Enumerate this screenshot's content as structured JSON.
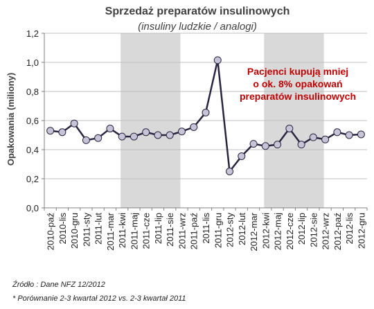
{
  "chart_data": {
    "type": "line",
    "title": "Sprzedaż preparatów insulinowych",
    "subtitle": "(insuliny ludzkie / analogi)",
    "ylabel": "Opakowania (miliony)",
    "ylim": [
      0,
      1.2
    ],
    "y_ticks": [
      "0,0",
      "0,2",
      "0,4",
      "0,6",
      "0,8",
      "1,0",
      "1,2"
    ],
    "categories": [
      "2010-paź",
      "2010-lis",
      "2010-gru",
      "2011-sty",
      "2011-lut",
      "2011-mar",
      "2011-kwi",
      "2011-maj",
      "2011-cze",
      "2011-lip",
      "2011-sie",
      "2011-wrz",
      "2011-paź",
      "2011-lis",
      "2011-gru",
      "2012-sty",
      "2012-lut",
      "2012-mar",
      "2012-kwi",
      "2012-maj",
      "2012-cze",
      "2012-lip",
      "2012-sie",
      "2012-wrz",
      "2012-paź",
      "2012-lis",
      "2012-gru"
    ],
    "values": [
      0.53,
      0.52,
      0.58,
      0.465,
      0.48,
      0.545,
      0.49,
      0.49,
      0.52,
      0.5,
      0.5,
      0.525,
      0.555,
      0.655,
      1.015,
      0.25,
      0.355,
      0.44,
      0.425,
      0.435,
      0.545,
      0.435,
      0.485,
      0.47,
      0.52,
      0.5,
      0.505
    ],
    "shaded_periods": [
      {
        "from": "2011-kwi",
        "to": "2011-wrz"
      },
      {
        "from": "2012-kwi",
        "to": "2012-wrz"
      }
    ],
    "annotation": [
      "Pacjenci kupują mniej",
      "o ok. 8% opakowań",
      "preparatów insulinowych"
    ],
    "colors": {
      "line": "#2b2440",
      "marker_fill": "#c8c4d8",
      "shade": "#d9d9d9",
      "annotation": "#c00000"
    },
    "grid": true
  },
  "footer": {
    "source": "Źródło : Dane NFZ 12/2012",
    "note": "*  Porównanie  2-3 kwartał 2012 vs. 2-3 kwartał 2011"
  }
}
